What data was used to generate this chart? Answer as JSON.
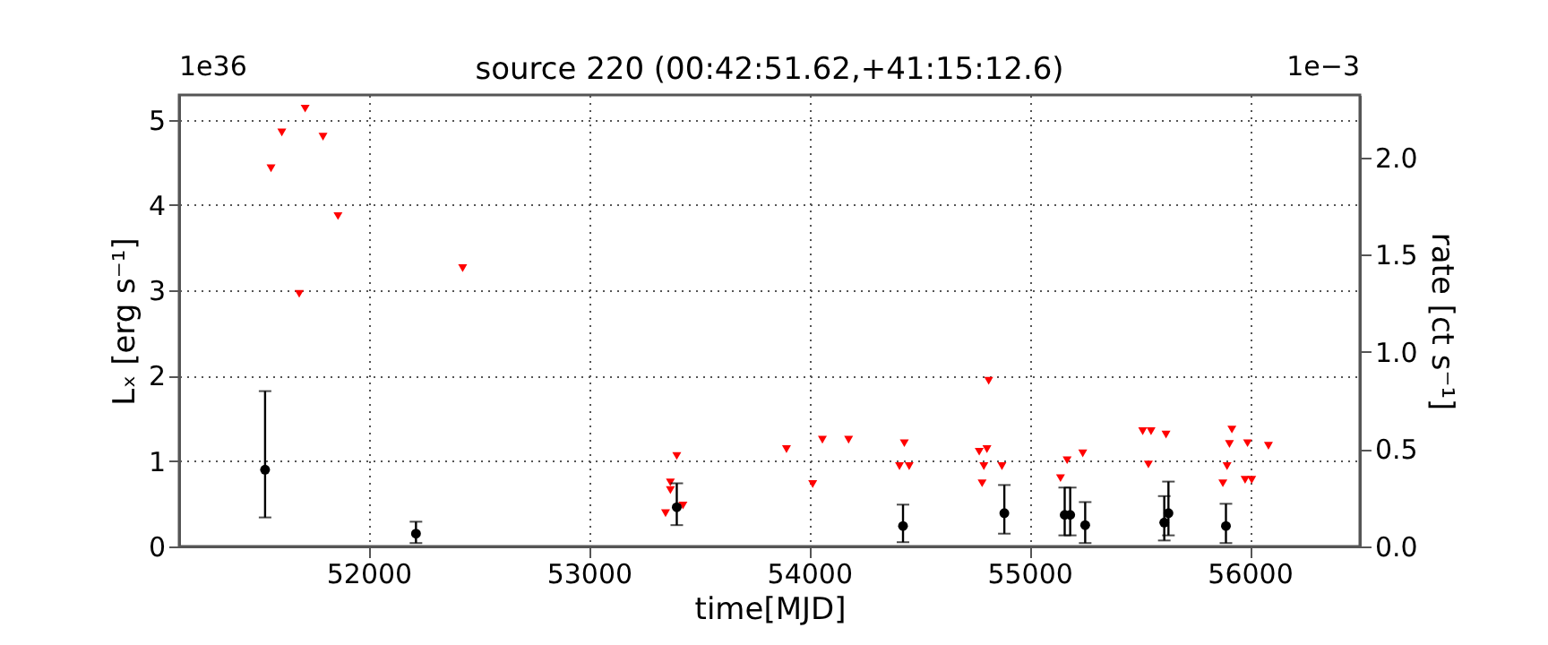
{
  "chart_data": {
    "type": "scatter",
    "title": "source 220    (00:42:51.62,+41:15:12.6)",
    "xlabel": "time[MJD]",
    "ylabel": "Lₓ [erg s⁻¹]",
    "y2label": "rate [ct s⁻¹]",
    "annotations": [
      "1e36",
      "1e−3"
    ],
    "xlim": [
      51140,
      56500
    ],
    "xticks": [
      52000,
      53000,
      54000,
      55000,
      56000
    ],
    "ylim": [
      0,
      5.29
    ],
    "yticks": [
      0,
      1,
      2,
      3,
      4,
      5
    ],
    "y2lim": [
      0,
      2.32
    ],
    "y2ticks": [
      {
        "value": 0,
        "label": "0.0"
      },
      {
        "value": 0.5,
        "label": "0.5"
      },
      {
        "value": 1,
        "label": "1.0"
      },
      {
        "value": 1.5,
        "label": "1.5"
      },
      {
        "value": 2,
        "label": "2.0"
      }
    ],
    "grid": true,
    "series": [
      {
        "color": "#ff0000",
        "marker": "triangle",
        "x": [
          51557,
          51606,
          51712,
          51793,
          51685,
          51861,
          52427,
          53399,
          53370,
          53370,
          53348,
          53427,
          53897,
          54016,
          54060,
          54179,
          54432,
          54410,
          54454,
          54772,
          54807,
          54815,
          54793,
          54785,
          54875,
          55141,
          55171,
          55242,
          55514,
          55552,
          55540,
          55620,
          55878,
          55897,
          55908,
          55919,
          55990,
          55979,
          56009,
          56085
        ],
        "values": [
          4.43,
          4.85,
          5.13,
          4.8,
          2.96,
          3.87,
          3.26,
          1.06,
          0.75,
          0.66,
          0.39,
          0.48,
          1.14,
          0.73,
          1.25,
          1.25,
          1.21,
          0.94,
          0.94,
          1.11,
          1.14,
          1.94,
          0.94,
          0.74,
          0.94,
          0.8,
          1.01,
          1.09,
          1.35,
          1.35,
          0.96,
          1.31,
          0.74,
          0.94,
          1.2,
          1.37,
          1.21,
          0.78,
          0.78,
          1.18
        ]
      },
      {
        "color": "#000000",
        "marker": "circle",
        "x": [
          51530,
          52215,
          53399,
          54426,
          54886,
          55160,
          55185,
          55253,
          55612,
          55631,
          55892
        ],
        "values": [
          0.9,
          0.15,
          0.46,
          0.24,
          0.39,
          0.37,
          0.37,
          0.25,
          0.28,
          0.39,
          0.24
        ],
        "errors": [
          [
            0.34,
            1.82
          ],
          [
            0.04,
            0.29
          ],
          [
            0.25,
            0.74
          ],
          [
            0.05,
            0.49
          ],
          [
            0.15,
            0.72
          ],
          [
            0.13,
            0.69
          ],
          [
            0.13,
            0.69
          ],
          [
            0.04,
            0.52
          ],
          [
            0.07,
            0.59
          ],
          [
            0.13,
            0.76
          ],
          [
            0.04,
            0.5
          ]
        ]
      }
    ]
  }
}
